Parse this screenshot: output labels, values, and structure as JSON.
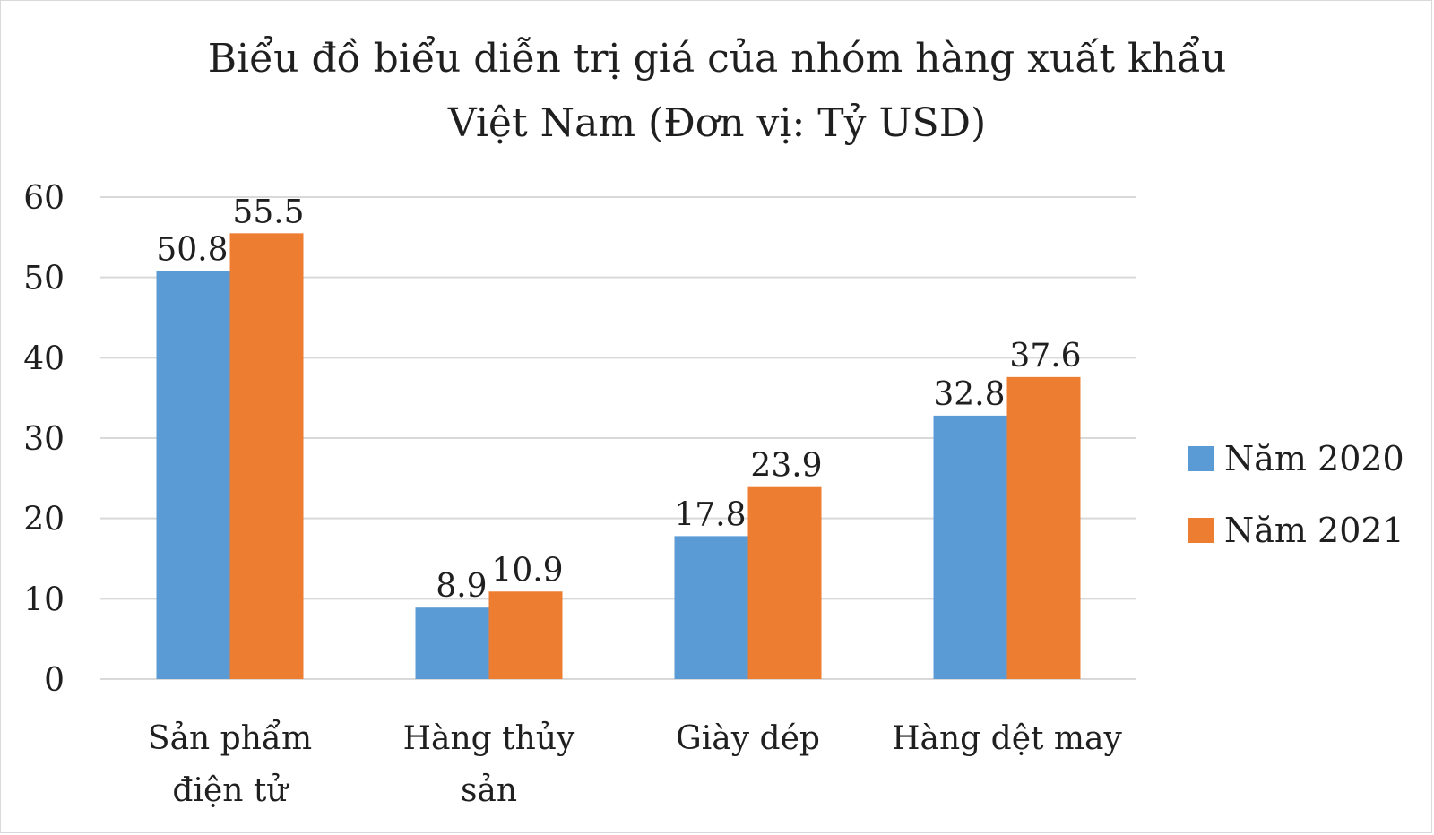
{
  "chart_data": {
    "type": "bar",
    "title": [
      "Biểu đồ biểu diễn trị giá của nhóm hàng xuất khẩu",
      "Việt Nam (Đơn vị: Tỷ USD)"
    ],
    "categories": [
      [
        "Sản phẩm",
        "điện tử"
      ],
      [
        "Hàng thủy",
        "sản"
      ],
      [
        "Giày dép"
      ],
      [
        "Hàng dệt may"
      ]
    ],
    "series": [
      {
        "name": "Năm 2020",
        "color": "#5b9bd5",
        "values": [
          50.8,
          8.9,
          17.8,
          32.8
        ],
        "labels": [
          "50.8",
          "8.9",
          "17.8",
          "32.8"
        ]
      },
      {
        "name": "Năm 2021",
        "color": "#ed7d31",
        "values": [
          55.5,
          10.9,
          23.9,
          37.6
        ],
        "labels": [
          "55.5",
          "10.9",
          "23.9",
          "37.6"
        ]
      }
    ],
    "ylim": [
      0,
      60
    ],
    "yticks": [
      "0",
      "10",
      "20",
      "30",
      "40",
      "50",
      "60"
    ],
    "ytick_values": [
      0,
      10,
      20,
      30,
      40,
      50,
      60
    ],
    "xlabel": "",
    "ylabel": "",
    "grid": true,
    "legend": "right"
  }
}
